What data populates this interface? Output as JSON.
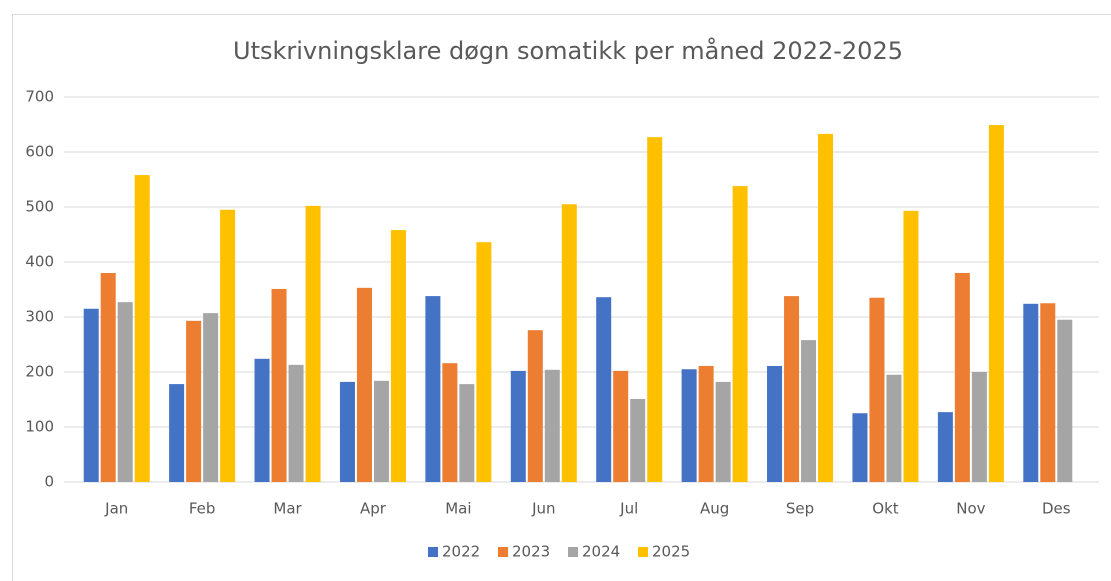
{
  "chart_data": {
    "type": "bar",
    "title": "Utskrivningsklare døgn somatikk per måned 2022-2025",
    "categories": [
      "Jan",
      "Feb",
      "Mar",
      "Apr",
      "Mai",
      "Jun",
      "Jul",
      "Aug",
      "Sep",
      "Okt",
      "Nov",
      "Des"
    ],
    "series": [
      {
        "name": "2022",
        "color": "#4472c4",
        "values": [
          315,
          178,
          224,
          182,
          338,
          202,
          336,
          205,
          211,
          125,
          127,
          324
        ]
      },
      {
        "name": "2023",
        "color": "#ed7d31",
        "values": [
          380,
          293,
          351,
          353,
          216,
          276,
          202,
          211,
          338,
          335,
          380,
          325
        ]
      },
      {
        "name": "2024",
        "color": "#a5a5a5",
        "values": [
          327,
          307,
          213,
          184,
          178,
          204,
          151,
          182,
          258,
          195,
          200,
          295
        ]
      },
      {
        "name": "2025",
        "color": "#ffc000",
        "values": [
          558,
          495,
          502,
          458,
          436,
          505,
          627,
          538,
          633,
          493,
          649,
          null
        ]
      }
    ],
    "ylim": [
      0,
      700
    ],
    "yticks": [
      0,
      100,
      200,
      300,
      400,
      500,
      600,
      700
    ],
    "grid": true,
    "legend": "bottom"
  }
}
